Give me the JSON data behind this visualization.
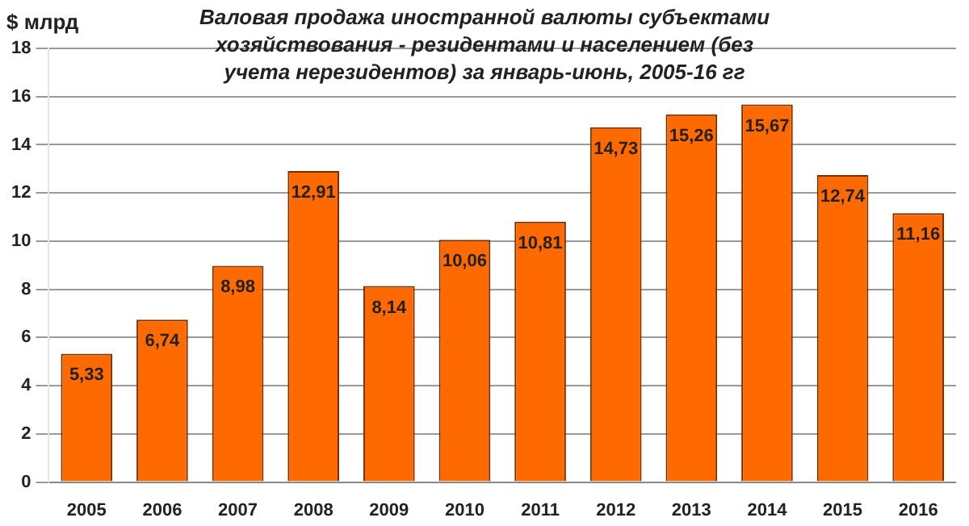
{
  "chart_data": {
    "type": "bar",
    "title": "Валовая продажа иностранной валюты субъектами хозяйствования - резидентами и населением (без учета нерезидентов) за январь-июнь, 2005-16 гг",
    "ylabel": "$ млрд",
    "categories": [
      "2005",
      "2006",
      "2007",
      "2008",
      "2009",
      "2010",
      "2011",
      "2012",
      "2013",
      "2014",
      "2015",
      "2016"
    ],
    "values": [
      5.33,
      6.74,
      8.98,
      12.91,
      8.14,
      10.06,
      10.81,
      14.73,
      15.26,
      15.67,
      12.74,
      11.16
    ],
    "value_labels": [
      "5,33",
      "6,74",
      "8,98",
      "12,91",
      "8,14",
      "10,06",
      "10,81",
      "14,73",
      "15,26",
      "15,67",
      "12,74",
      "11,16"
    ],
    "color": "#ff6a00",
    "ylim": [
      0,
      18
    ],
    "yticks": [
      0,
      2,
      4,
      6,
      8,
      10,
      12,
      14,
      16,
      18
    ],
    "grid": "y"
  }
}
